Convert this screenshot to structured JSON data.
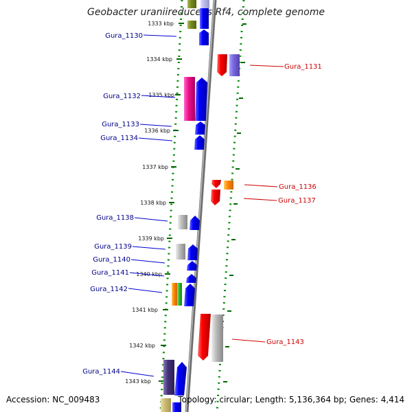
{
  "title": "Geobacter uraniireducens Rf4, complete genome",
  "accession": "Accession: NC_009483",
  "topology": "Topology: circular; Length: 5,136,364 bp; Genes: 4,414",
  "kbp_labels": [
    "1333 kbp",
    "1334 kbp",
    "1335 kbp",
    "1336 kbp",
    "1337 kbp",
    "1338 kbp",
    "1339 kbp",
    "1340 kbp",
    "1341 kbp",
    "1342 kbp",
    "1343 kbp"
  ],
  "genes_left": [
    "Gura_1130",
    "Gura_1132",
    "Gura_1133",
    "Gura_1134",
    "Gura_1138",
    "Gura_1139",
    "Gura_1140",
    "Gura_1141",
    "Gura_1142",
    "Gura_1144"
  ],
  "genes_right": [
    "Gura_1131",
    "Gura_1136",
    "Gura_1137",
    "Gura_1143"
  ],
  "colors": {
    "forward_strand": "#0000ff",
    "reverse_strand": "#ff0000",
    "backbone": "#888888",
    "tick": "#007700",
    "label_left": "#000088",
    "label_right": "#cc0000"
  }
}
